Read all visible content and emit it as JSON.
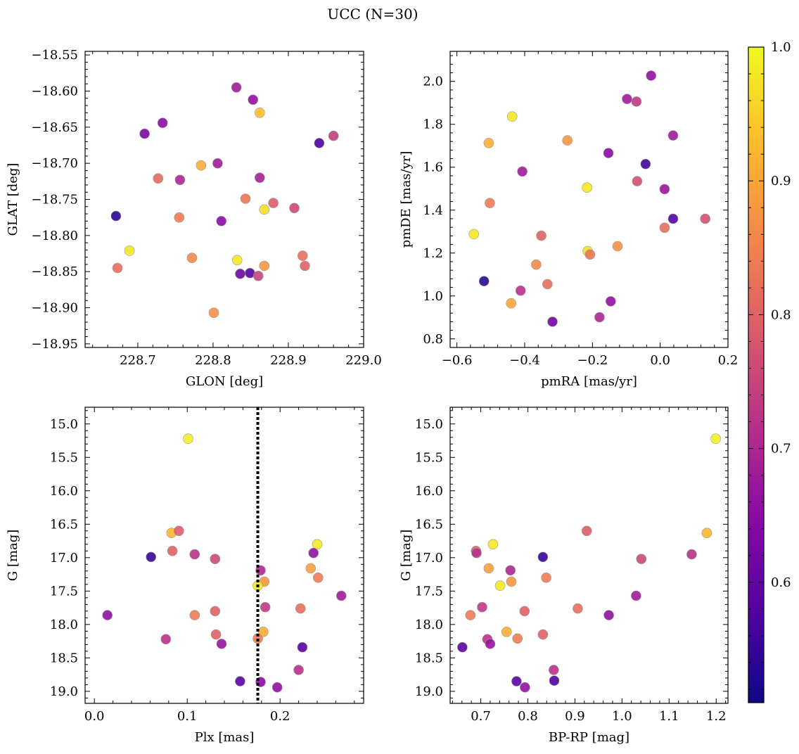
{
  "figure": {
    "title": "UCC (N=30)",
    "colormap": "plasma",
    "colorbar": {
      "min": 0.51,
      "max": 1.0,
      "ticks": [
        0.6,
        0.7,
        0.8,
        0.9,
        1.0
      ],
      "tick_labels": [
        "0.6",
        "0.7",
        "0.8",
        "0.9",
        "1.0"
      ]
    },
    "marker_edge_color": "#9a9a9a",
    "line_color": "#000000"
  },
  "chart_data": [
    {
      "id": "glon-glat",
      "type": "scatter",
      "xlabel": "GLON [deg]",
      "ylabel": "GLAT [deg]",
      "xlim": [
        228.63,
        229.0
      ],
      "ylim": [
        -18.955,
        -18.545
      ],
      "invert_y": false,
      "xticks": [
        228.7,
        228.8,
        228.9,
        229.0
      ],
      "xtick_labels": [
        "228.7",
        "228.8",
        "228.9",
        "229.0"
      ],
      "yticks": [
        -18.55,
        -18.6,
        -18.65,
        -18.7,
        -18.75,
        -18.8,
        -18.85,
        -18.9,
        -18.95
      ],
      "ytick_labels": [
        "−18.55",
        "−18.60",
        "−18.65",
        "−18.70",
        "−18.75",
        "−18.80",
        "−18.85",
        "−18.90",
        "−18.95"
      ],
      "points": [
        {
          "x": 228.831,
          "y": -18.595,
          "c": 0.68
        },
        {
          "x": 228.853,
          "y": -18.612,
          "c": 0.66
        },
        {
          "x": 228.862,
          "y": -18.63,
          "c": 0.93
        },
        {
          "x": 228.709,
          "y": -18.659,
          "c": 0.63
        },
        {
          "x": 228.733,
          "y": -18.644,
          "c": 0.65
        },
        {
          "x": 228.941,
          "y": -18.672,
          "c": 0.57
        },
        {
          "x": 228.96,
          "y": -18.662,
          "c": 0.74
        },
        {
          "x": 228.784,
          "y": -18.703,
          "c": 0.91
        },
        {
          "x": 228.806,
          "y": -18.7,
          "c": 0.68
        },
        {
          "x": 228.727,
          "y": -18.721,
          "c": 0.81
        },
        {
          "x": 228.756,
          "y": -18.723,
          "c": 0.7
        },
        {
          "x": 228.862,
          "y": -18.72,
          "c": 0.69
        },
        {
          "x": 228.843,
          "y": -18.749,
          "c": 0.83
        },
        {
          "x": 228.88,
          "y": -18.755,
          "c": 0.79
        },
        {
          "x": 228.868,
          "y": -18.764,
          "c": 0.97
        },
        {
          "x": 228.908,
          "y": -18.762,
          "c": 0.76
        },
        {
          "x": 228.671,
          "y": -18.773,
          "c": 0.54
        },
        {
          "x": 228.755,
          "y": -18.775,
          "c": 0.84
        },
        {
          "x": 228.811,
          "y": -18.78,
          "c": 0.65
        },
        {
          "x": 228.689,
          "y": -18.821,
          "c": 0.98
        },
        {
          "x": 228.919,
          "y": -18.828,
          "c": 0.82
        },
        {
          "x": 228.772,
          "y": -18.831,
          "c": 0.86
        },
        {
          "x": 228.832,
          "y": -18.834,
          "c": 0.98
        },
        {
          "x": 228.868,
          "y": -18.842,
          "c": 0.88
        },
        {
          "x": 228.922,
          "y": -18.842,
          "c": 0.8
        },
        {
          "x": 228.673,
          "y": -18.845,
          "c": 0.82
        },
        {
          "x": 228.836,
          "y": -18.853,
          "c": 0.61
        },
        {
          "x": 228.849,
          "y": -18.852,
          "c": 0.58
        },
        {
          "x": 228.86,
          "y": -18.856,
          "c": 0.75
        },
        {
          "x": 228.801,
          "y": -18.907,
          "c": 0.87
        }
      ]
    },
    {
      "id": "pmra-pmde",
      "type": "scatter",
      "xlabel": "pmRA [mas/yr]",
      "ylabel": "pmDE [mas/yr]",
      "xlim": [
        -0.62,
        0.2
      ],
      "ylim": [
        0.76,
        2.14
      ],
      "invert_y": false,
      "xticks": [
        -0.6,
        -0.4,
        -0.2,
        0.0,
        0.2
      ],
      "xtick_labels": [
        "−0.6",
        "−0.4",
        "−0.2",
        "0.0",
        "0.2"
      ],
      "yticks": [
        0.8,
        1.0,
        1.2,
        1.4,
        1.6,
        1.8,
        2.0
      ],
      "ytick_labels": [
        "0.8",
        "1.0",
        "1.2",
        "1.4",
        "1.6",
        "1.8",
        "2.0"
      ],
      "points": [
        {
          "x": -0.027,
          "y": 2.027,
          "c": 0.66
        },
        {
          "x": -0.098,
          "y": 1.918,
          "c": 0.68
        },
        {
          "x": -0.07,
          "y": 1.906,
          "c": 0.73
        },
        {
          "x": -0.437,
          "y": 1.836,
          "c": 0.98
        },
        {
          "x": 0.038,
          "y": 1.748,
          "c": 0.68
        },
        {
          "x": -0.506,
          "y": 1.713,
          "c": 0.91
        },
        {
          "x": -0.274,
          "y": 1.725,
          "c": 0.88
        },
        {
          "x": -0.153,
          "y": 1.666,
          "c": 0.65
        },
        {
          "x": -0.043,
          "y": 1.615,
          "c": 0.56
        },
        {
          "x": -0.407,
          "y": 1.58,
          "c": 0.68
        },
        {
          "x": -0.068,
          "y": 1.535,
          "c": 0.77
        },
        {
          "x": 0.013,
          "y": 1.498,
          "c": 0.67
        },
        {
          "x": -0.216,
          "y": 1.505,
          "c": 0.98
        },
        {
          "x": -0.503,
          "y": 1.433,
          "c": 0.84
        },
        {
          "x": 0.013,
          "y": 1.318,
          "c": 0.82
        },
        {
          "x": 0.133,
          "y": 1.36,
          "c": 0.77
        },
        {
          "x": 0.038,
          "y": 1.36,
          "c": 0.58
        },
        {
          "x": -0.55,
          "y": 1.288,
          "c": 0.98
        },
        {
          "x": -0.351,
          "y": 1.281,
          "c": 0.8
        },
        {
          "x": -0.126,
          "y": 1.232,
          "c": 0.87
        },
        {
          "x": -0.214,
          "y": 1.209,
          "c": 0.97
        },
        {
          "x": -0.207,
          "y": 1.193,
          "c": 0.83
        },
        {
          "x": -0.366,
          "y": 1.146,
          "c": 0.86
        },
        {
          "x": -0.52,
          "y": 1.069,
          "c": 0.54
        },
        {
          "x": -0.333,
          "y": 1.055,
          "c": 0.82
        },
        {
          "x": -0.412,
          "y": 1.025,
          "c": 0.72
        },
        {
          "x": -0.44,
          "y": 0.966,
          "c": 0.9
        },
        {
          "x": -0.146,
          "y": 0.975,
          "c": 0.66
        },
        {
          "x": -0.179,
          "y": 0.901,
          "c": 0.7
        },
        {
          "x": -0.318,
          "y": 0.88,
          "c": 0.62
        }
      ]
    },
    {
      "id": "plx-g",
      "type": "scatter",
      "xlabel": "Plx [mas]",
      "ylabel": "G [mag]",
      "xlim": [
        -0.01,
        0.29
      ],
      "ylim": [
        14.75,
        19.18
      ],
      "invert_y": true,
      "xticks": [
        0.0,
        0.1,
        0.2
      ],
      "xtick_labels": [
        "0.0",
        "0.1",
        "0.2"
      ],
      "yticks": [
        15.0,
        15.5,
        16.0,
        16.5,
        17.0,
        17.5,
        18.0,
        18.5,
        19.0
      ],
      "ytick_labels": [
        "15.0",
        "15.5",
        "16.0",
        "16.5",
        "17.0",
        "17.5",
        "18.0",
        "18.5",
        "19.0"
      ],
      "vline": {
        "x": 0.176
      },
      "points": [
        {
          "x": 0.101,
          "y": 15.22,
          "c": 0.99
        },
        {
          "x": 0.083,
          "y": 16.63,
          "c": 0.92
        },
        {
          "x": 0.091,
          "y": 16.6,
          "c": 0.79
        },
        {
          "x": 0.084,
          "y": 16.9,
          "c": 0.8
        },
        {
          "x": 0.108,
          "y": 16.95,
          "c": 0.72
        },
        {
          "x": 0.061,
          "y": 16.99,
          "c": 0.55
        },
        {
          "x": 0.13,
          "y": 17.02,
          "c": 0.76
        },
        {
          "x": 0.24,
          "y": 16.8,
          "c": 0.98
        },
        {
          "x": 0.236,
          "y": 16.93,
          "c": 0.66
        },
        {
          "x": 0.233,
          "y": 17.16,
          "c": 0.89
        },
        {
          "x": 0.241,
          "y": 17.3,
          "c": 0.84
        },
        {
          "x": 0.179,
          "y": 17.19,
          "c": 0.7
        },
        {
          "x": 0.183,
          "y": 17.36,
          "c": 0.88
        },
        {
          "x": 0.176,
          "y": 17.42,
          "c": 0.98
        },
        {
          "x": 0.266,
          "y": 17.57,
          "c": 0.68
        },
        {
          "x": 0.184,
          "y": 17.74,
          "c": 0.73
        },
        {
          "x": 0.222,
          "y": 17.76,
          "c": 0.82
        },
        {
          "x": 0.13,
          "y": 17.8,
          "c": 0.8
        },
        {
          "x": 0.014,
          "y": 17.86,
          "c": 0.66
        },
        {
          "x": 0.108,
          "y": 17.86,
          "c": 0.84
        },
        {
          "x": 0.182,
          "y": 18.11,
          "c": 0.91
        },
        {
          "x": 0.131,
          "y": 18.15,
          "c": 0.8
        },
        {
          "x": 0.176,
          "y": 18.21,
          "c": 0.84
        },
        {
          "x": 0.077,
          "y": 18.22,
          "c": 0.72
        },
        {
          "x": 0.137,
          "y": 18.29,
          "c": 0.67
        },
        {
          "x": 0.224,
          "y": 18.34,
          "c": 0.59
        },
        {
          "x": 0.22,
          "y": 18.68,
          "c": 0.72
        },
        {
          "x": 0.157,
          "y": 18.85,
          "c": 0.59
        },
        {
          "x": 0.179,
          "y": 18.86,
          "c": 0.65
        },
        {
          "x": 0.197,
          "y": 18.94,
          "c": 0.66
        }
      ]
    },
    {
      "id": "bprp-g",
      "type": "scatter",
      "xlabel": "BP-RP [mag]",
      "ylabel": "G [mag]",
      "xlim": [
        0.635,
        1.225
      ],
      "ylim": [
        14.75,
        19.18
      ],
      "invert_y": true,
      "xticks": [
        0.7,
        0.8,
        0.9,
        1.0,
        1.1,
        1.2
      ],
      "xtick_labels": [
        "0.7",
        "0.8",
        "0.9",
        "1.0",
        "1.1",
        "1.2"
      ],
      "yticks": [
        15.0,
        15.5,
        16.0,
        16.5,
        17.0,
        17.5,
        18.0,
        18.5,
        19.0
      ],
      "ytick_labels": [
        "15.0",
        "15.5",
        "16.0",
        "16.5",
        "17.0",
        "17.5",
        "18.0",
        "18.5",
        "19.0"
      ],
      "points": [
        {
          "x": 1.199,
          "y": 15.22,
          "c": 0.99
        },
        {
          "x": 1.18,
          "y": 16.63,
          "c": 0.92
        },
        {
          "x": 0.925,
          "y": 16.6,
          "c": 0.79
        },
        {
          "x": 0.69,
          "y": 16.9,
          "c": 0.8
        },
        {
          "x": 0.691,
          "y": 16.93,
          "c": 0.72
        },
        {
          "x": 0.726,
          "y": 16.8,
          "c": 0.98
        },
        {
          "x": 0.832,
          "y": 16.99,
          "c": 0.55
        },
        {
          "x": 1.148,
          "y": 16.95,
          "c": 0.72
        },
        {
          "x": 1.041,
          "y": 17.02,
          "c": 0.76
        },
        {
          "x": 0.717,
          "y": 17.16,
          "c": 0.89
        },
        {
          "x": 0.763,
          "y": 17.19,
          "c": 0.7
        },
        {
          "x": 0.839,
          "y": 17.3,
          "c": 0.84
        },
        {
          "x": 0.765,
          "y": 17.36,
          "c": 0.88
        },
        {
          "x": 0.741,
          "y": 17.42,
          "c": 0.98
        },
        {
          "x": 1.03,
          "y": 17.57,
          "c": 0.68
        },
        {
          "x": 0.703,
          "y": 17.74,
          "c": 0.73
        },
        {
          "x": 0.906,
          "y": 17.76,
          "c": 0.82
        },
        {
          "x": 0.793,
          "y": 17.8,
          "c": 0.8
        },
        {
          "x": 0.678,
          "y": 17.86,
          "c": 0.84
        },
        {
          "x": 0.972,
          "y": 17.86,
          "c": 0.66
        },
        {
          "x": 0.755,
          "y": 18.11,
          "c": 0.91
        },
        {
          "x": 0.832,
          "y": 18.15,
          "c": 0.8
        },
        {
          "x": 0.778,
          "y": 18.21,
          "c": 0.84
        },
        {
          "x": 0.714,
          "y": 18.22,
          "c": 0.72
        },
        {
          "x": 0.72,
          "y": 18.29,
          "c": 0.67
        },
        {
          "x": 0.661,
          "y": 18.34,
          "c": 0.59
        },
        {
          "x": 0.855,
          "y": 18.68,
          "c": 0.72
        },
        {
          "x": 0.776,
          "y": 18.85,
          "c": 0.59
        },
        {
          "x": 0.856,
          "y": 18.84,
          "c": 0.57
        },
        {
          "x": 0.794,
          "y": 18.94,
          "c": 0.66
        }
      ]
    }
  ]
}
